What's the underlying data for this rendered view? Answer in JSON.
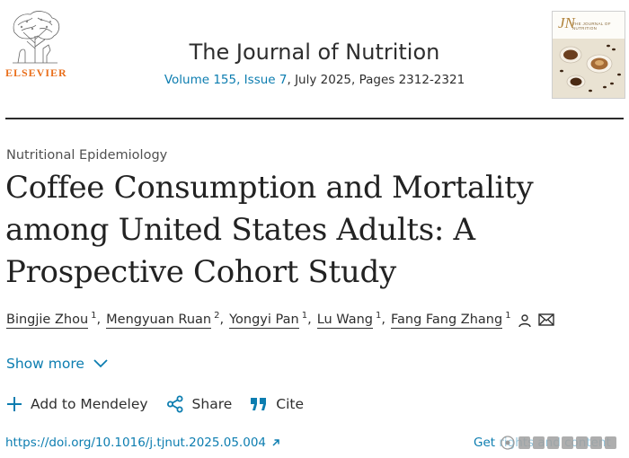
{
  "publisher": {
    "wordmark": "ELSEVIER",
    "brand_color": "#e96f1c"
  },
  "journal": {
    "title": "The Journal of Nutrition",
    "volume_issue": "Volume 155, Issue 7",
    "date_pages": ", July 2025, Pages 2312-2321",
    "cover_abbrev": "JN",
    "cover_subtitle": "THE JOURNAL OF NUTRITION"
  },
  "article": {
    "category": "Nutritional Epidemiology",
    "title": "Coffee Consumption and Mortality among United States Adults: A Prospective Cohort Study",
    "authors": [
      {
        "name": "Bingjie Zhou",
        "affil": "1"
      },
      {
        "name": "Mengyuan Ruan",
        "affil": "2"
      },
      {
        "name": "Yongyi Pan",
        "affil": "1"
      },
      {
        "name": "Lu Wang",
        "affil": "1"
      },
      {
        "name": "Fang Fang Zhang",
        "affil": "1"
      }
    ],
    "show_more": "Show more"
  },
  "actions": {
    "mendeley": "Add to Mendeley",
    "share": "Share",
    "cite": "Cite"
  },
  "links": {
    "doi": "https://doi.org/10.1016/j.tjnut.2025.05.004",
    "rights": "Get rights and content"
  },
  "icons": {
    "mendeley": "plus-icon",
    "share": "share-icon",
    "cite": "quote-icon",
    "show_more": "chevron-down-icon",
    "doi": "external-link-icon",
    "author_profile": "person-icon",
    "author_email": "mail-icon"
  },
  "colors": {
    "link": "#0c7db0",
    "text": "#2e2e2e"
  }
}
